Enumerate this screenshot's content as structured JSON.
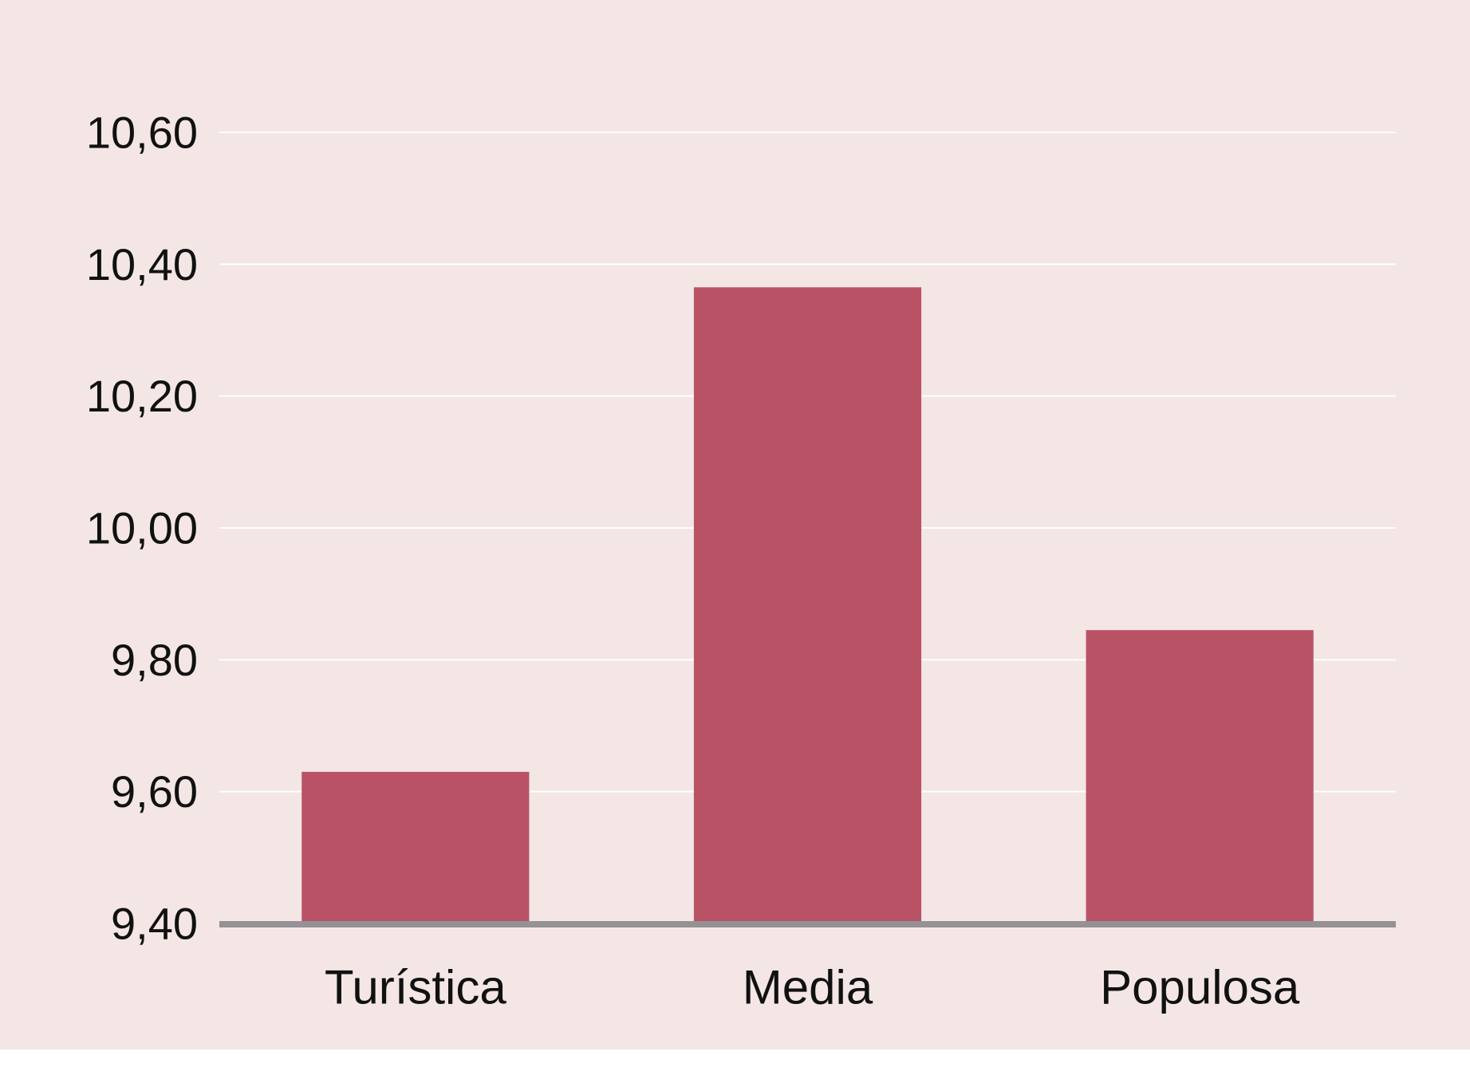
{
  "colors": {
    "background": "#F3E6E5",
    "bar": "#B85264",
    "gridline": "#FFFFFF",
    "axis": "#959195",
    "text": "#111111"
  },
  "chart_data": {
    "type": "bar",
    "title": "",
    "xlabel": "",
    "ylabel": "",
    "categories": [
      "Turística",
      "Media",
      "Populosa"
    ],
    "values": [
      9.63,
      10.365,
      9.845
    ],
    "ylim": [
      9.4,
      10.6
    ],
    "yticks": [
      9.4,
      9.6,
      9.8,
      10.0,
      10.2,
      10.4,
      10.6
    ],
    "ytick_labels": [
      "9,40",
      "9,60",
      "9,80",
      "10,00",
      "10,20",
      "10,40",
      "10,60"
    ],
    "grid": true,
    "legend": "none"
  }
}
